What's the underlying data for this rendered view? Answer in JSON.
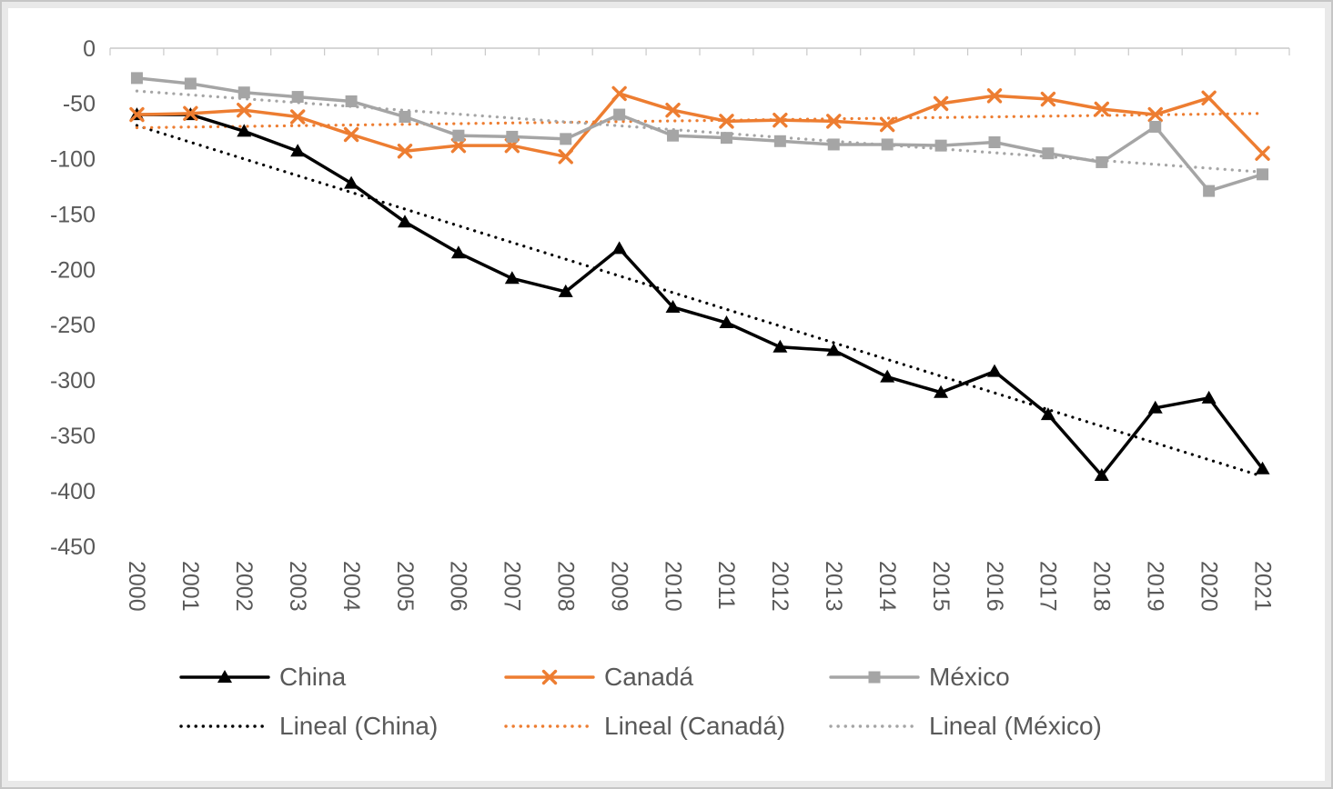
{
  "chart_data": {
    "type": "line",
    "title": "",
    "xlabel": "",
    "ylabel": "",
    "x": [
      "2000",
      "2001",
      "2002",
      "2003",
      "2004",
      "2005",
      "2006",
      "2007",
      "2008",
      "2009",
      "2010",
      "2011",
      "2012",
      "2013",
      "2014",
      "2015",
      "2016",
      "2017",
      "2018",
      "2019",
      "2020",
      "2021"
    ],
    "x_label_rotation": 90,
    "ylim": [
      0,
      -450
    ],
    "yticks": [
      0,
      -50,
      -100,
      -150,
      -200,
      -250,
      -300,
      -350,
      -400,
      -450
    ],
    "grid": false,
    "legend_position": "bottom",
    "axis_color": "#c9c9c9",
    "text_color": "#595959",
    "series": [
      {
        "id": "china",
        "name": "China",
        "color": "#000000",
        "marker": "triangle",
        "values": [
          -60,
          -60,
          -75,
          -93,
          -122,
          -157,
          -185,
          -208,
          -220,
          -181,
          -234,
          -248,
          -270,
          -273,
          -297,
          -311,
          -292,
          -331,
          -386,
          -325,
          -316,
          -380
        ]
      },
      {
        "id": "canada",
        "name": "Canadá",
        "color": "#ED7D31",
        "marker": "x",
        "values": [
          -60,
          -59,
          -56,
          -62,
          -78,
          -93,
          -88,
          -88,
          -98,
          -41,
          -56,
          -66,
          -65,
          -66,
          -69,
          -50,
          -43,
          -46,
          -55,
          -60,
          -45,
          -95
        ]
      },
      {
        "id": "mexico",
        "name": "México",
        "color": "#A5A5A5",
        "marker": "square",
        "values": [
          -27,
          -32,
          -40,
          -44,
          -48,
          -62,
          -79,
          -80,
          -82,
          -60,
          -79,
          -81,
          -84,
          -87,
          -87,
          -88,
          -85,
          -95,
          -103,
          -71,
          -129,
          -114
        ]
      }
    ],
    "trendlines": [
      {
        "label": "Lineal (China)",
        "series": "china",
        "style": "dotted"
      },
      {
        "label": "Lineal (Canadá)",
        "series": "canada",
        "style": "dotted"
      },
      {
        "label": "Lineal (México)",
        "series": "mexico",
        "style": "dotted"
      }
    ]
  }
}
